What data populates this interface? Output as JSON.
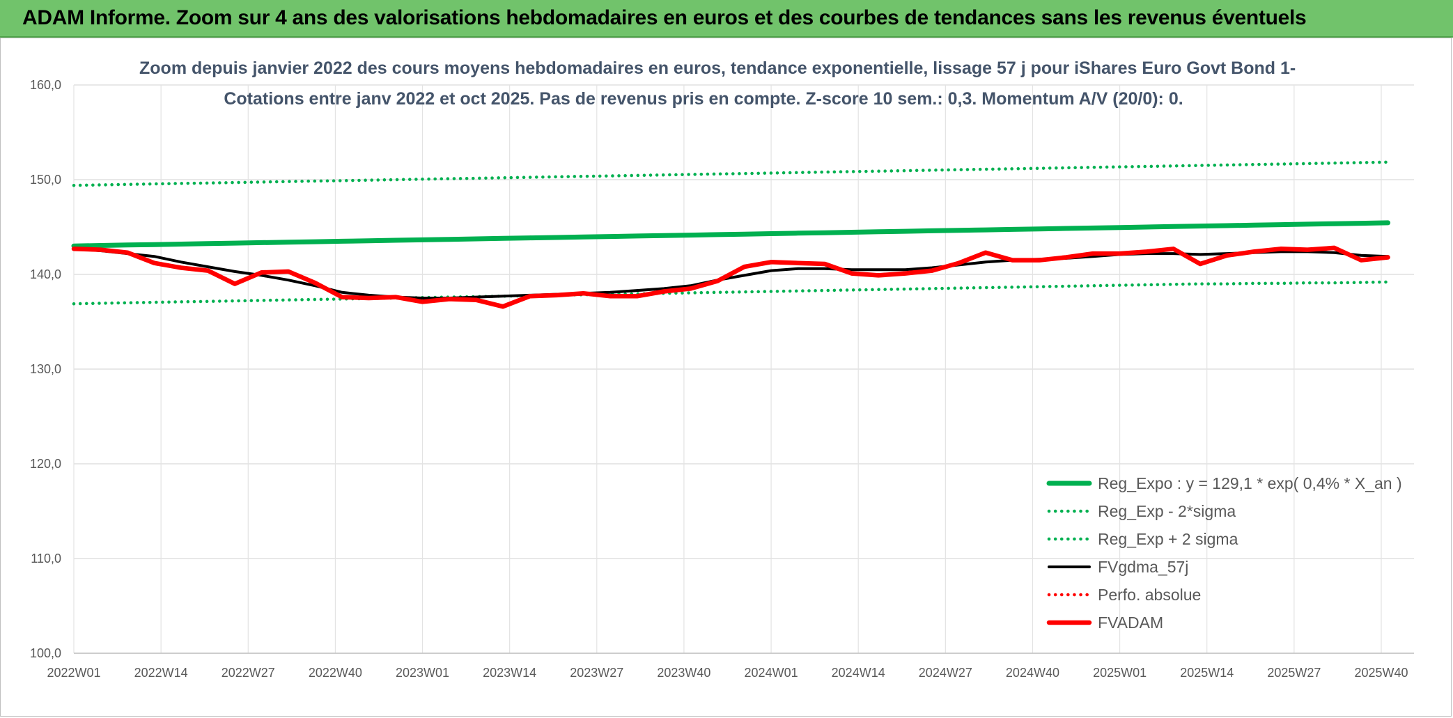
{
  "banner": {
    "title": "ADAM Informe. Zoom sur 4 ans des valorisations hebdomadaires en euros et des courbes de tendances sans les revenus éventuels"
  },
  "chart_data": {
    "type": "line",
    "title": "Zoom depuis janvier 2022 des cours moyens hebdomadaires en euros, tendance exponentielle, lissage 57 j pour iShares Euro Govt Bond 1-",
    "subtitle": "Cotations entre janv 2022 et oct 2025. Pas de revenus pris en compte. Z-score 10 sem.: 0,3. Momentum A/V (20/0): 0.",
    "xlabel": "",
    "ylabel": "",
    "ylim": [
      100,
      160
    ],
    "yticks": [
      "100,0",
      "110,0",
      "120,0",
      "130,0",
      "140,0",
      "150,0",
      "160,0"
    ],
    "xticks": [
      "2022W01",
      "2022W14",
      "2022W27",
      "2022W40",
      "2023W01",
      "2023W14",
      "2023W27",
      "2023W40",
      "2024W01",
      "2024W14",
      "2024W27",
      "2024W40",
      "2025W01",
      "2025W14",
      "2025W27",
      "2025W40"
    ],
    "grid": true,
    "legend_position": "bottom-right",
    "x_keys": [
      "2022W01",
      "2022W05",
      "2022W09",
      "2022W13",
      "2022W17",
      "2022W21",
      "2022W25",
      "2022W29",
      "2022W33",
      "2022W37",
      "2022W41",
      "2022W45",
      "2022W49",
      "2023W01",
      "2023W05",
      "2023W09",
      "2023W13",
      "2023W17",
      "2023W21",
      "2023W25",
      "2023W29",
      "2023W33",
      "2023W37",
      "2023W41",
      "2023W45",
      "2023W49",
      "2024W01",
      "2024W05",
      "2024W09",
      "2024W13",
      "2024W17",
      "2024W21",
      "2024W25",
      "2024W29",
      "2024W33",
      "2024W37",
      "2024W41",
      "2024W45",
      "2024W49",
      "2025W01",
      "2025W05",
      "2025W09",
      "2025W13",
      "2025W17",
      "2025W21",
      "2025W25",
      "2025W29",
      "2025W33",
      "2025W37",
      "2025W41"
    ],
    "series": [
      {
        "name": "Reg_Expo : y = 129,1 * exp( 0,4% *  X_an )",
        "color": "#00b050",
        "style": "solid-thick",
        "values": [
          143.0,
          143.05,
          143.1,
          143.15,
          143.2,
          143.25,
          143.3,
          143.35,
          143.4,
          143.45,
          143.5,
          143.55,
          143.6,
          143.65,
          143.7,
          143.75,
          143.8,
          143.85,
          143.9,
          143.95,
          144.0,
          144.05,
          144.1,
          144.15,
          144.2,
          144.25,
          144.3,
          144.35,
          144.4,
          144.45,
          144.5,
          144.55,
          144.6,
          144.65,
          144.7,
          144.75,
          144.8,
          144.85,
          144.9,
          144.95,
          145.0,
          145.05,
          145.1,
          145.15,
          145.2,
          145.25,
          145.3,
          145.35,
          145.4,
          145.45
        ]
      },
      {
        "name": "Reg_Exp - 2*sigma",
        "color": "#00b050",
        "style": "dotted",
        "values": [
          136.9,
          136.95,
          137.0,
          137.05,
          137.1,
          137.15,
          137.2,
          137.25,
          137.3,
          137.35,
          137.4,
          137.45,
          137.5,
          137.55,
          137.6,
          137.65,
          137.7,
          137.75,
          137.8,
          137.85,
          137.9,
          137.95,
          138.0,
          138.05,
          138.1,
          138.15,
          138.2,
          138.25,
          138.3,
          138.35,
          138.4,
          138.45,
          138.5,
          138.55,
          138.6,
          138.65,
          138.7,
          138.75,
          138.8,
          138.85,
          138.9,
          138.95,
          139.0,
          139.0,
          139.05,
          139.05,
          139.1,
          139.1,
          139.15,
          139.2
        ]
      },
      {
        "name": "Reg_Exp + 2 sigma",
        "color": "#00b050",
        "style": "dotted",
        "values": [
          149.4,
          149.45,
          149.5,
          149.55,
          149.6,
          149.65,
          149.7,
          149.75,
          149.8,
          149.85,
          149.9,
          149.95,
          150.0,
          150.05,
          150.1,
          150.15,
          150.2,
          150.25,
          150.3,
          150.35,
          150.4,
          150.45,
          150.5,
          150.55,
          150.6,
          150.65,
          150.7,
          150.75,
          150.8,
          150.85,
          150.9,
          150.95,
          151.0,
          151.05,
          151.1,
          151.15,
          151.2,
          151.25,
          151.3,
          151.35,
          151.4,
          151.45,
          151.5,
          151.55,
          151.6,
          151.65,
          151.7,
          151.75,
          151.8,
          151.85
        ]
      },
      {
        "name": "FVgdma_57j",
        "color": "#000000",
        "style": "solid",
        "values": [
          142.7,
          142.5,
          142.2,
          141.9,
          141.3,
          140.8,
          140.3,
          139.9,
          139.4,
          138.8,
          138.1,
          137.8,
          137.6,
          137.5,
          137.5,
          137.6,
          137.7,
          137.8,
          137.9,
          138.0,
          138.1,
          138.3,
          138.5,
          138.8,
          139.4,
          139.9,
          140.4,
          140.6,
          140.6,
          140.5,
          140.5,
          140.5,
          140.7,
          141.0,
          141.3,
          141.5,
          141.6,
          141.7,
          141.9,
          142.1,
          142.2,
          142.2,
          142.1,
          142.2,
          142.3,
          142.4,
          142.4,
          142.3,
          142.0,
          141.9
        ]
      },
      {
        "name": "Perfo. absolue",
        "color": "#ff0000",
        "style": "dotted",
        "values": []
      },
      {
        "name": "FVADAM",
        "color": "#ff0000",
        "style": "solid-thick",
        "values": [
          142.7,
          142.6,
          142.3,
          141.2,
          140.7,
          140.4,
          139.0,
          140.2,
          140.3,
          139.1,
          137.6,
          137.5,
          137.6,
          137.1,
          137.4,
          137.3,
          136.6,
          137.7,
          137.8,
          138.0,
          137.7,
          137.7,
          138.2,
          138.5,
          139.3,
          140.8,
          141.3,
          141.2,
          141.1,
          140.1,
          139.9,
          140.1,
          140.4,
          141.2,
          142.3,
          141.5,
          141.5,
          141.8,
          142.2,
          142.2,
          142.4,
          142.7,
          141.1,
          142.0,
          142.4,
          142.7,
          142.6,
          142.8,
          141.5,
          141.8
        ]
      }
    ]
  }
}
